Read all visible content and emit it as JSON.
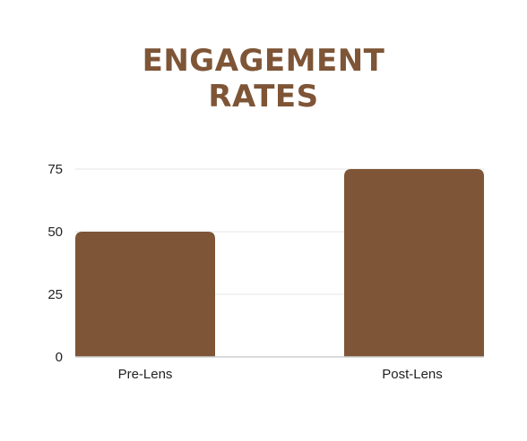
{
  "chart_data": {
    "type": "bar",
    "title_lines": [
      "ENGAGEMENT",
      "RATES"
    ],
    "categories": [
      "Pre-Lens",
      "Post-Lens"
    ],
    "values": [
      50,
      75
    ],
    "ylim": [
      0,
      75
    ],
    "yticks": [
      0,
      25,
      50,
      75
    ],
    "grid": true,
    "xlabel": "",
    "ylabel": ""
  },
  "colors": {
    "bar": "#7e5536",
    "title": "#7e5536",
    "grid": "#e6e6e6",
    "axis": "#cfcfcf"
  }
}
